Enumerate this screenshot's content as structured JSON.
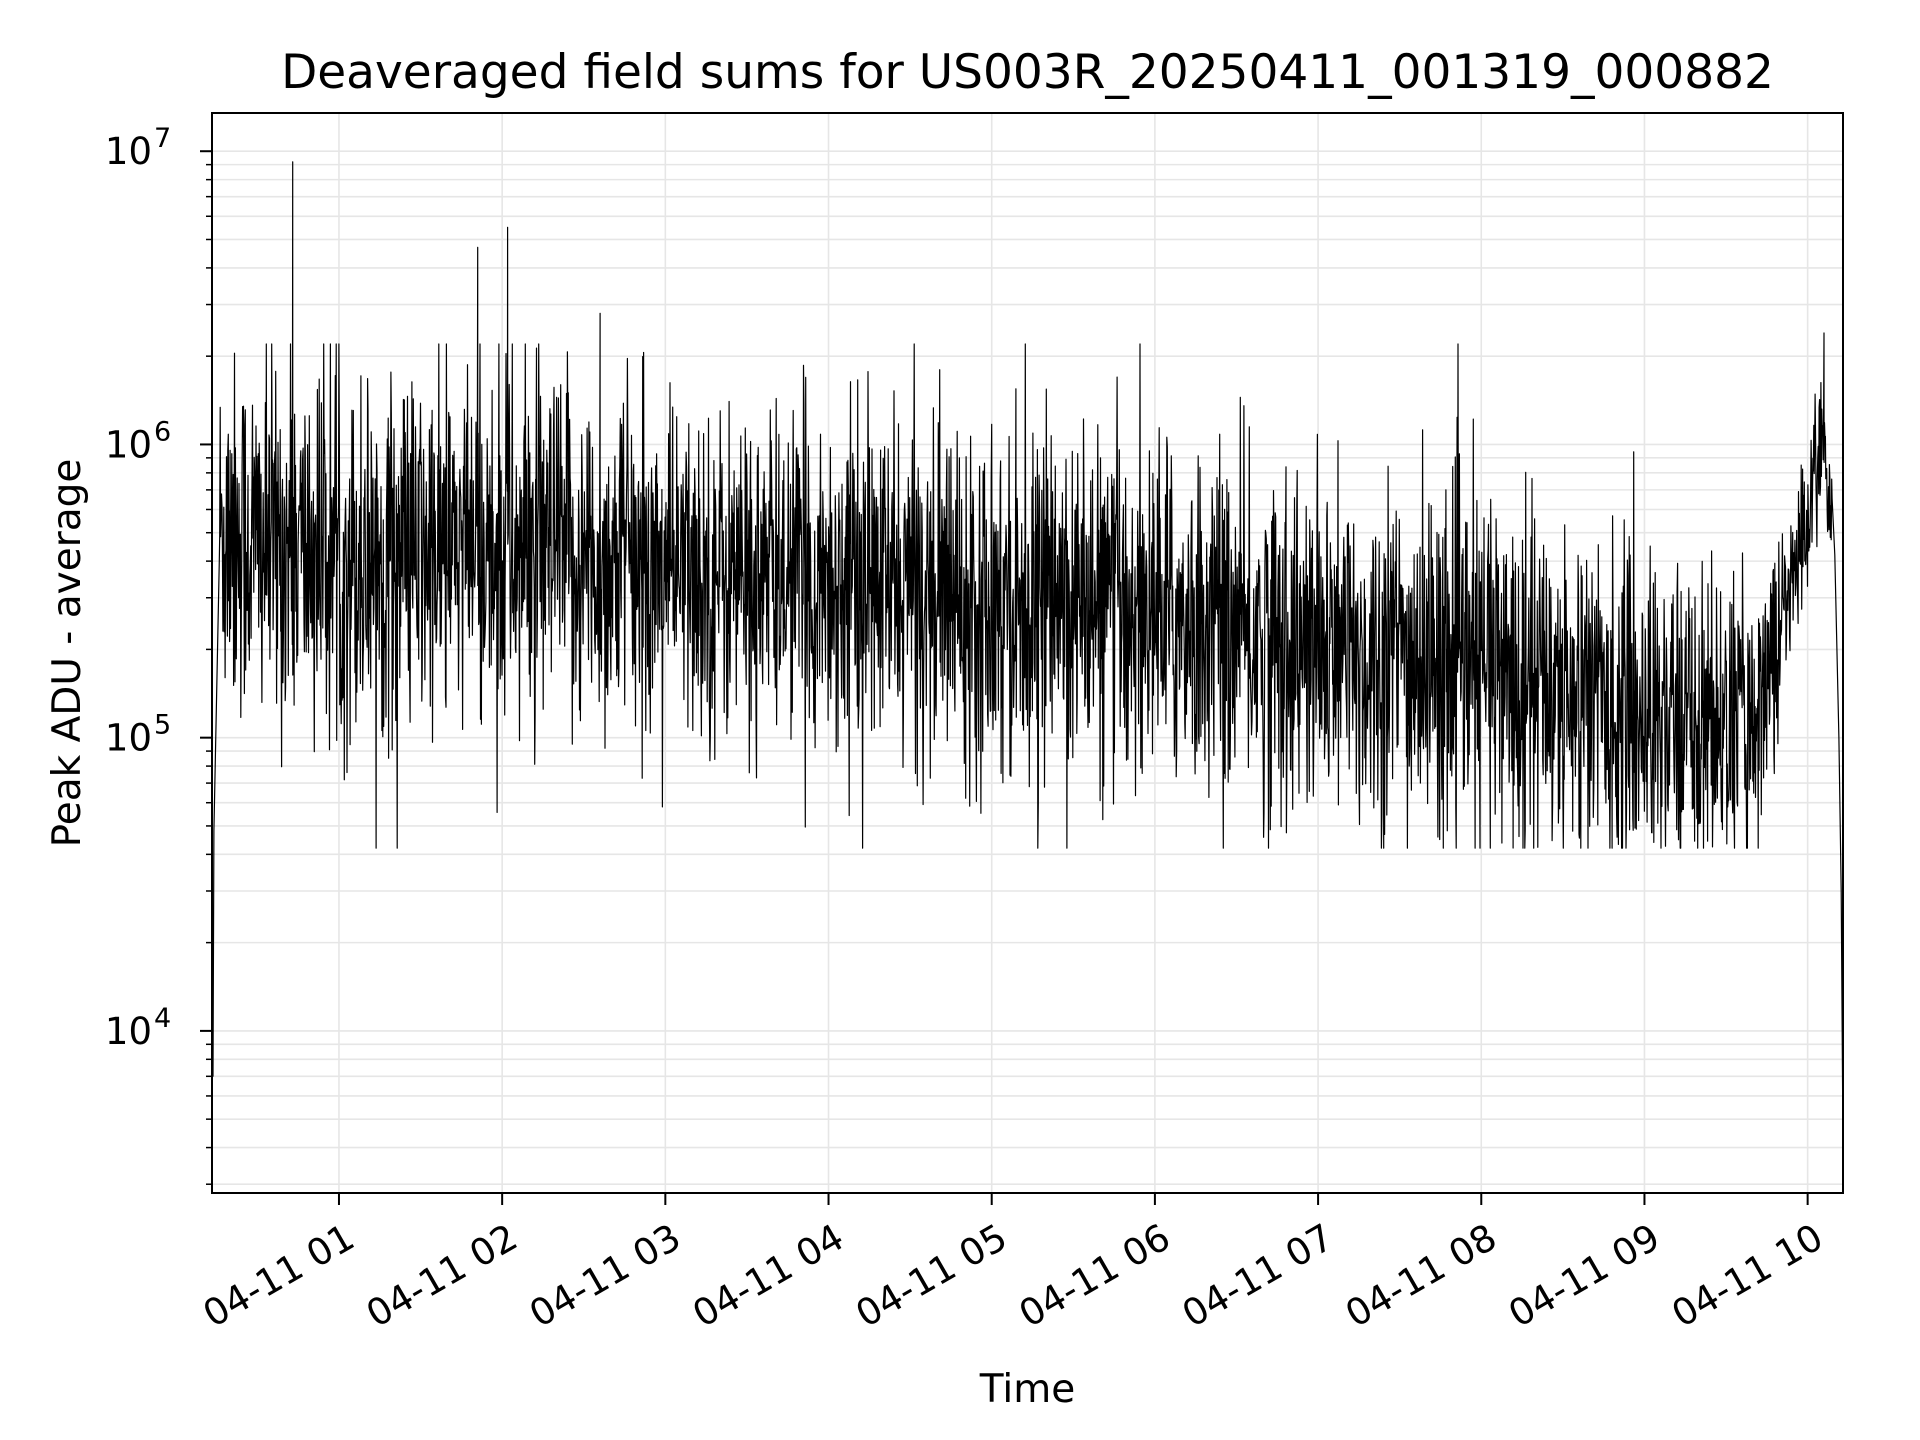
{
  "chart_data": {
    "type": "line",
    "title": "Deaveraged field sums for US003R_20250411_001319_000882",
    "xlabel": "Time",
    "ylabel": "Peak ADU - average",
    "y_scale": "log",
    "ylim": [
      2800,
      13500000
    ],
    "xlim": [
      "2025-04-11 00:13:19",
      "2025-04-11 10:13:00"
    ],
    "grid": true,
    "series_color": "#000000",
    "grid_color": "#e6e6e6",
    "x_ticks": [
      {
        "value": "2025-04-11 01:00",
        "label": "04-11 01"
      },
      {
        "value": "2025-04-11 02:00",
        "label": "04-11 02"
      },
      {
        "value": "2025-04-11 03:00",
        "label": "04-11 03"
      },
      {
        "value": "2025-04-11 04:00",
        "label": "04-11 04"
      },
      {
        "value": "2025-04-11 05:00",
        "label": "04-11 05"
      },
      {
        "value": "2025-04-11 06:00",
        "label": "04-11 06"
      },
      {
        "value": "2025-04-11 07:00",
        "label": "04-11 07"
      },
      {
        "value": "2025-04-11 08:00",
        "label": "04-11 08"
      },
      {
        "value": "2025-04-11 09:00",
        "label": "04-11 09"
      },
      {
        "value": "2025-04-11 10:00",
        "label": "04-11 10"
      }
    ],
    "y_ticks": [
      {
        "value": 10000,
        "base": "10",
        "exp": "4"
      },
      {
        "value": 100000,
        "base": "10",
        "exp": "5"
      },
      {
        "value": 1000000,
        "base": "10",
        "exp": "6"
      },
      {
        "value": 10000000,
        "base": "10",
        "exp": "7"
      }
    ],
    "series": [
      {
        "type": "noisy-envelope",
        "note_points": [
          {
            "t": "2025-04-11 00:13:19",
            "y": 8000
          },
          {
            "t": "2025-04-11 00:14:00",
            "y": 48000
          },
          {
            "t": "2025-04-11 00:16:00",
            "y": 320000
          },
          {
            "t": "2025-04-11 00:43:00",
            "y": 9200000
          },
          {
            "t": "2025-04-11 01:51:00",
            "y": 4700000
          },
          {
            "t": "2025-04-11 02:02:00",
            "y": 5500000
          },
          {
            "t": "2025-04-11 02:36:00",
            "y": 2800000
          },
          {
            "t": "2025-04-11 10:06:00",
            "y": 2400000
          },
          {
            "t": "2025-04-11 10:13:00",
            "y": 4000
          }
        ],
        "envelope": [
          {
            "t": "2025-04-11 00:16:00",
            "median": 500000,
            "spread": 1.1
          },
          {
            "t": "2025-04-11 01:00:00",
            "median": 400000,
            "spread": 1.1
          },
          {
            "t": "2025-04-11 02:00:00",
            "median": 420000,
            "spread": 1.1
          },
          {
            "t": "2025-04-11 03:00:00",
            "median": 360000,
            "spread": 1.0
          },
          {
            "t": "2025-04-11 04:00:00",
            "median": 340000,
            "spread": 1.0
          },
          {
            "t": "2025-04-11 05:00:00",
            "median": 300000,
            "spread": 1.0
          },
          {
            "t": "2025-04-11 06:00:00",
            "median": 260000,
            "spread": 1.0
          },
          {
            "t": "2025-04-11 07:00:00",
            "median": 190000,
            "spread": 1.05
          },
          {
            "t": "2025-04-11 08:00:00",
            "median": 170000,
            "spread": 1.05
          },
          {
            "t": "2025-04-11 09:00:00",
            "median": 120000,
            "spread": 0.95
          },
          {
            "t": "2025-04-11 09:40:00",
            "median": 110000,
            "spread": 0.85
          },
          {
            "t": "2025-04-11 09:55:00",
            "median": 350000,
            "spread": 0.5
          },
          {
            "t": "2025-04-11 10:05:00",
            "median": 1000000,
            "spread": 0.4
          },
          {
            "t": "2025-04-11 10:09:00",
            "median": 600000,
            "spread": 0.3
          }
        ]
      }
    ]
  }
}
